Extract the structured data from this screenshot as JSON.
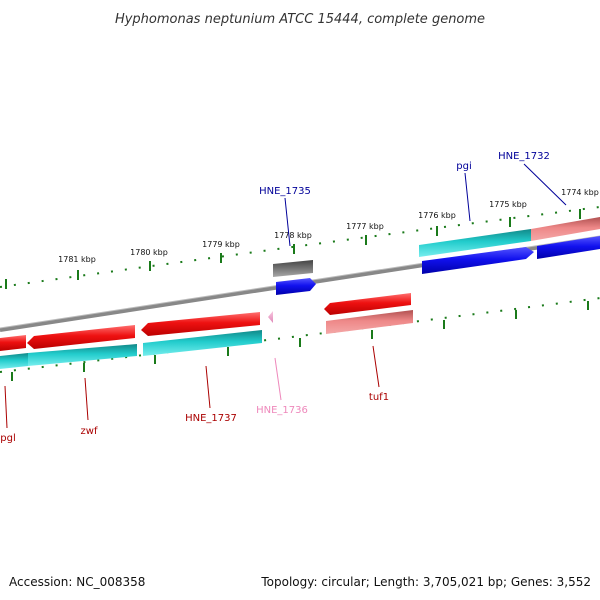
{
  "title": "Hyphomonas neptunium ATCC 15444, complete genome",
  "footer": {
    "accession": "Accession: NC_008358",
    "summary": "Topology: circular; Length: 3,705,021 bp; Genes: 3,552"
  },
  "colors": {
    "backbone": "#888888",
    "tick": "#1a7a1a",
    "red": "#ee1111",
    "light_red": "#ee8888",
    "cyan": "#22cccc",
    "blue": "#1111ee",
    "gray": "#707070",
    "pink": "#f0a0cc",
    "label_blue": "#000099",
    "label_red": "#aa0000",
    "label_pink": "#ee88bb"
  },
  "scale_labels": [
    "1774 kbp",
    "1775 kbp",
    "1776 kbp",
    "1777 kbp",
    "1778 kbp",
    "1779 kbp",
    "1780 kbp",
    "1781 kbp"
  ],
  "gene_labels": {
    "HNE_1732": "HNE_1732",
    "pgi": "pgi",
    "HNE_1735": "HNE_1735",
    "tuf1": "tuf1",
    "HNE_1736": "HNE_1736",
    "HNE_1737": "HNE_1737",
    "zwf": "zwf",
    "pgl": "pgl"
  }
}
